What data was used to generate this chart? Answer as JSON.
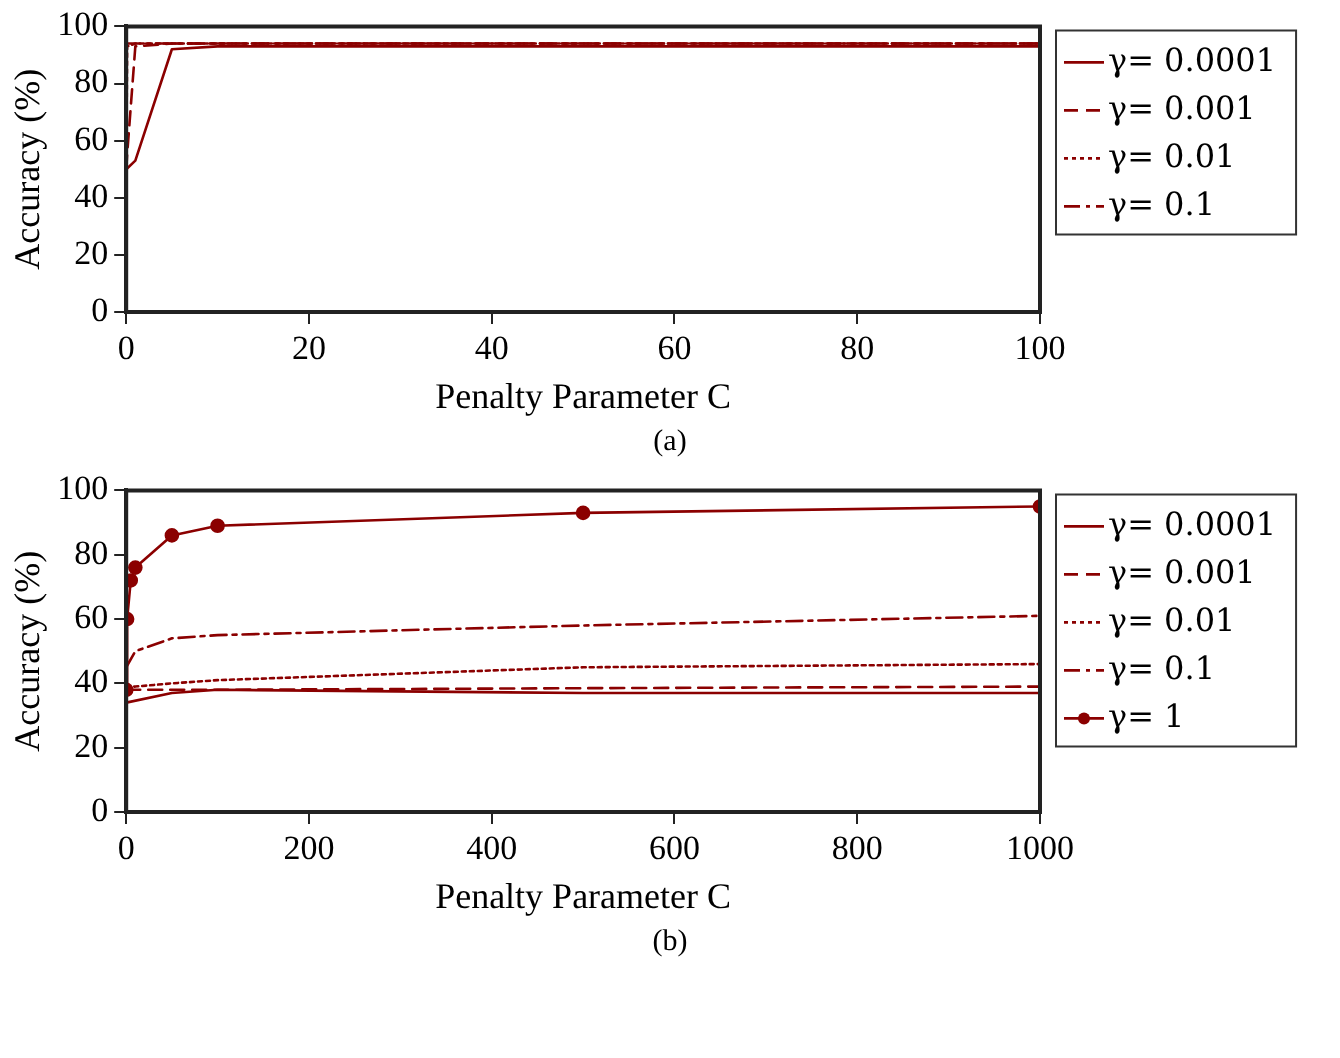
{
  "chart_data": [
    {
      "type": "line",
      "xlabel": "Penalty Parameter C",
      "ylabel": "Accuracy (%)",
      "xlim": [
        0,
        100
      ],
      "xticks": [
        0,
        20,
        40,
        60,
        80,
        100
      ],
      "ylim": [
        0,
        100
      ],
      "yticks": [
        0,
        20,
        40,
        60,
        80,
        100
      ],
      "grid": false,
      "legend": "top right",
      "annotations": [
        "(a)"
      ],
      "series": [
        {
          "name": "γ= 0.0001",
          "color": "#8b0000",
          "line_style": "solid",
          "marker": "none",
          "x": [
            0.01,
            0.1,
            1,
            5,
            10,
            50,
            100
          ],
          "values": [
            50,
            50,
            53,
            92,
            93,
            93,
            93
          ]
        },
        {
          "name": "γ= 0.001",
          "color": "#8b0000",
          "line_style": "dashed",
          "marker": "none",
          "x": [
            0.01,
            0.1,
            1,
            5,
            10,
            50,
            100
          ],
          "values": [
            50,
            55,
            93,
            94,
            94,
            94,
            94
          ]
        },
        {
          "name": "γ= 0.01",
          "color": "#8b0000",
          "line_style": "dotted",
          "marker": "none",
          "x": [
            0.01,
            0.1,
            1,
            5,
            10,
            50,
            100
          ],
          "values": [
            50,
            93,
            94,
            94,
            94,
            94,
            94
          ]
        },
        {
          "name": "γ= 0.1",
          "color": "#8b0000",
          "line_style": "dashdot",
          "marker": "none",
          "x": [
            0.01,
            0.1,
            1,
            5,
            10,
            50,
            100
          ],
          "values": [
            93,
            94,
            94,
            94,
            94,
            94,
            94
          ]
        }
      ]
    },
    {
      "type": "line",
      "xlabel": "Penalty Parameter C",
      "ylabel": "Accuracy (%)",
      "xlim": [
        0,
        1000
      ],
      "xticks": [
        0,
        200,
        400,
        600,
        800,
        1000
      ],
      "ylim": [
        0,
        100
      ],
      "yticks": [
        0,
        20,
        40,
        60,
        80,
        100
      ],
      "grid": false,
      "legend": "top right",
      "annotations": [
        "(b)"
      ],
      "series": [
        {
          "name": "γ= 0.0001",
          "color": "#8b0000",
          "line_style": "solid",
          "marker": "none",
          "x": [
            0.01,
            50,
            100,
            500,
            1000
          ],
          "values": [
            34,
            37,
            38,
            37,
            37
          ]
        },
        {
          "name": "γ= 0.001",
          "color": "#8b0000",
          "line_style": "dashed",
          "marker": "none",
          "x": [
            0.01,
            10,
            50,
            100,
            500,
            1000
          ],
          "values": [
            38,
            38,
            38,
            38,
            38.5,
            39
          ]
        },
        {
          "name": "γ= 0.01",
          "color": "#8b0000",
          "line_style": "dotted",
          "marker": "none",
          "x": [
            0.01,
            10,
            50,
            100,
            500,
            1000
          ],
          "values": [
            39,
            39,
            40,
            41,
            45,
            46
          ]
        },
        {
          "name": "γ= 0.1",
          "color": "#8b0000",
          "line_style": "dashdot",
          "marker": "none",
          "x": [
            0.01,
            10,
            50,
            100,
            500,
            1000
          ],
          "values": [
            45,
            50,
            54,
            55,
            58,
            61
          ]
        },
        {
          "name": "γ= 1",
          "color": "#8b0000",
          "line_style": "solid",
          "marker": "circle",
          "x": [
            0.1,
            1,
            5,
            10,
            50,
            100,
            500,
            1000
          ],
          "values": [
            38,
            60,
            72,
            76,
            86,
            89,
            93,
            95
          ]
        }
      ]
    }
  ]
}
